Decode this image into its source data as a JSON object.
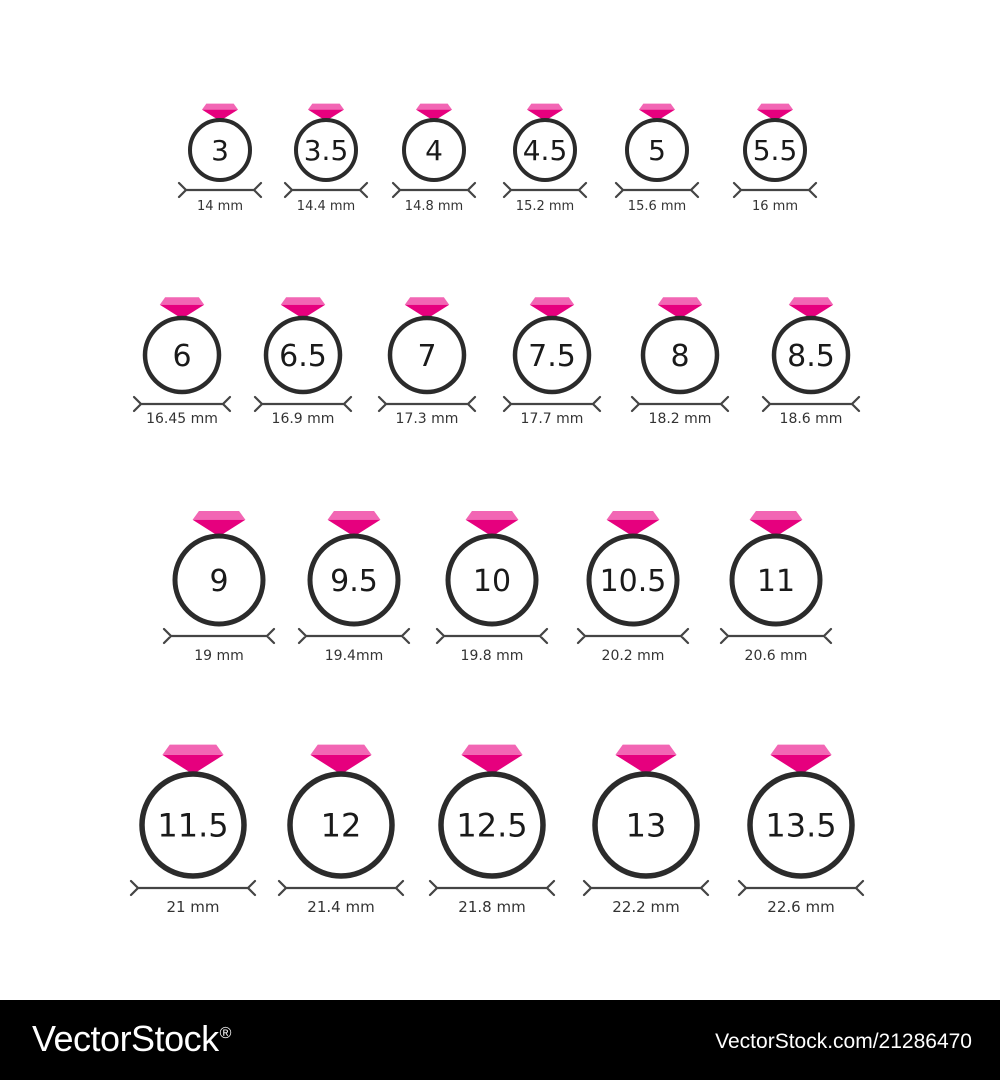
{
  "colors": {
    "gem_top": "#f266b4",
    "gem_bottom": "#e6007e",
    "ring": "#2b2b2b",
    "label": "#333333",
    "footer_bg": "#000000",
    "footer_text": "#ffffff"
  },
  "icons": {
    "gem": "diamond-gem-icon",
    "ring": "ring-band-icon",
    "measure": "caliper-arrow-icon"
  },
  "chart_data": {
    "type": "table",
    "rows": [
      [
        {
          "size": "3",
          "mm": "14 mm"
        },
        {
          "size": "3.5",
          "mm": "14.4 mm"
        },
        {
          "size": "4",
          "mm": "14.8 mm"
        },
        {
          "size": "4.5",
          "mm": "15.2 mm"
        },
        {
          "size": "5",
          "mm": "15.6 mm"
        },
        {
          "size": "5.5",
          "mm": "16 mm"
        }
      ],
      [
        {
          "size": "6",
          "mm": "16.45 mm"
        },
        {
          "size": "6.5",
          "mm": "16.9 mm"
        },
        {
          "size": "7",
          "mm": "17.3 mm"
        },
        {
          "size": "7.5",
          "mm": "17.7 mm"
        },
        {
          "size": "8",
          "mm": "18.2 mm"
        },
        {
          "size": "8.5",
          "mm": "18.6 mm"
        }
      ],
      [
        {
          "size": "9",
          "mm": "19 mm"
        },
        {
          "size": "9.5",
          "mm": "19.4mm"
        },
        {
          "size": "10",
          "mm": "19.8 mm"
        },
        {
          "size": "10.5",
          "mm": "20.2 mm"
        },
        {
          "size": "11",
          "mm": "20.6 mm"
        }
      ],
      [
        {
          "size": "11.5",
          "mm": "21 mm"
        },
        {
          "size": "12",
          "mm": "21.4 mm"
        },
        {
          "size": "12.5",
          "mm": "21.8 mm"
        },
        {
          "size": "13",
          "mm": "22.2 mm"
        },
        {
          "size": "13.5",
          "mm": "22.6 mm"
        }
      ]
    ]
  },
  "footer": {
    "brand_text": "VectorStock",
    "brand_mark": "®",
    "image_id": "VectorStock.com/21286470"
  }
}
